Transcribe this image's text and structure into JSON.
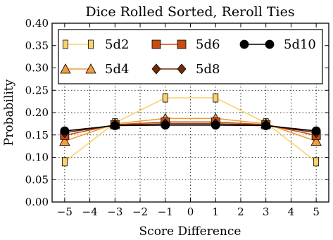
{
  "chart_data": {
    "type": "line",
    "title": "Dice Rolled Sorted, Reroll Ties",
    "xlabel": "Score Difference",
    "ylabel": "Probability",
    "xlim": [
      -5.5,
      5.5
    ],
    "ylim": [
      0.0,
      0.4
    ],
    "x_ticks": [
      -5,
      -4,
      -3,
      -2,
      -1,
      0,
      1,
      2,
      3,
      4,
      5
    ],
    "x_tick_labels": [
      "−5",
      "−4",
      "−3",
      "−2",
      "−1",
      "0",
      "1",
      "2",
      "3",
      "4",
      "5"
    ],
    "y_ticks": [
      0.0,
      0.05,
      0.1,
      0.15,
      0.2,
      0.25,
      0.3,
      0.35,
      0.4
    ],
    "y_tick_labels": [
      "0.00",
      "0.05",
      "0.10",
      "0.15",
      "0.20",
      "0.25",
      "0.30",
      "0.35",
      "0.40"
    ],
    "grid": true,
    "legend_position": "top",
    "x": [
      -5,
      -3,
      -1,
      1,
      3,
      5
    ],
    "series": [
      {
        "name": "5d2",
        "color": "#fdd26e",
        "marker": "rect-tall",
        "values": [
          0.09,
          0.177,
          0.233,
          0.233,
          0.177,
          0.09
        ]
      },
      {
        "name": "5d4",
        "color": "#f19c39",
        "marker": "triangle",
        "values": [
          0.136,
          0.175,
          0.187,
          0.187,
          0.175,
          0.136
        ]
      },
      {
        "name": "5d6",
        "color": "#c44d13",
        "marker": "square",
        "values": [
          0.149,
          0.173,
          0.179,
          0.179,
          0.173,
          0.149
        ]
      },
      {
        "name": "5d8",
        "color": "#6e2a07",
        "marker": "diamond",
        "values": [
          0.155,
          0.172,
          0.175,
          0.175,
          0.172,
          0.155
        ]
      },
      {
        "name": "5d10",
        "color": "#000000",
        "marker": "circle",
        "values": [
          0.159,
          0.171,
          0.172,
          0.172,
          0.171,
          0.159
        ]
      }
    ]
  }
}
